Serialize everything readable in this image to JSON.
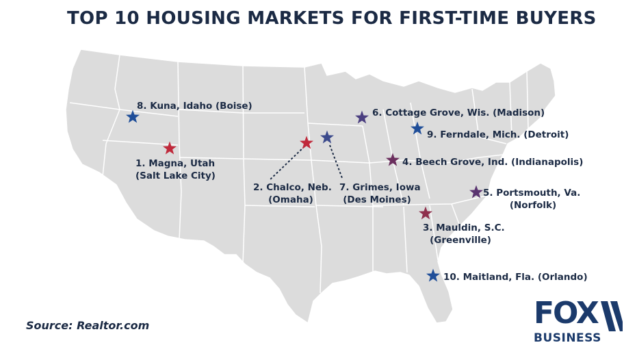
{
  "title": "TOP 10 HOUSING MARKETS FOR FIRST-TIME BUYERS",
  "source": "Source: Realtor.com",
  "logo": {
    "top": "FOX",
    "bottom": "BUSINESS"
  },
  "colors": {
    "land": "#dcdcdc",
    "border": "#ffffff",
    "star_red": "#c0293b",
    "star_blue": "#1f4e99",
    "star_purple": "#6b3a7a",
    "star_navy": "#3b4a8c",
    "text": "#1b2a44"
  },
  "markers": [
    {
      "rank": 1,
      "line1": "1. Magna, Utah",
      "line2": "(Salt Lake City)",
      "icon": "star-icon",
      "color": "#c0293b"
    },
    {
      "rank": 2,
      "line1": "2. Chalco,  Neb.",
      "line2": "(Omaha)",
      "icon": "star-icon",
      "color": "#c0293b"
    },
    {
      "rank": 3,
      "line1": "3. Mauldin, S.C.",
      "line2": "(Greenville)",
      "icon": "star-icon",
      "color": "#8e2f4c"
    },
    {
      "rank": 4,
      "line1": "4. Beech Grove, Ind. (Indianapolis)",
      "line2": "",
      "icon": "star-icon",
      "color": "#6b2f5e"
    },
    {
      "rank": 5,
      "line1": "5. Portsmouth, Va.",
      "line2": "(Norfolk)",
      "icon": "star-icon",
      "color": "#5a3470"
    },
    {
      "rank": 6,
      "line1": "6. Cottage Grove, Wis. (Madison)",
      "line2": "",
      "icon": "star-icon",
      "color": "#4b3f80"
    },
    {
      "rank": 7,
      "line1": "7. Grimes, Iowa",
      "line2": "(Des Moines)",
      "icon": "star-icon",
      "color": "#3b4a8c"
    },
    {
      "rank": 8,
      "line1": "8. Kuna, Idaho (Boise)",
      "line2": "",
      "icon": "star-icon",
      "color": "#1f4e99"
    },
    {
      "rank": 9,
      "line1": "9. Ferndale, Mich. (Detroit)",
      "line2": "",
      "icon": "star-icon",
      "color": "#1f4e99"
    },
    {
      "rank": 10,
      "line1": "10. Maitland, Fla. (Orlando)",
      "line2": "",
      "icon": "star-icon",
      "color": "#1f4e99"
    }
  ]
}
